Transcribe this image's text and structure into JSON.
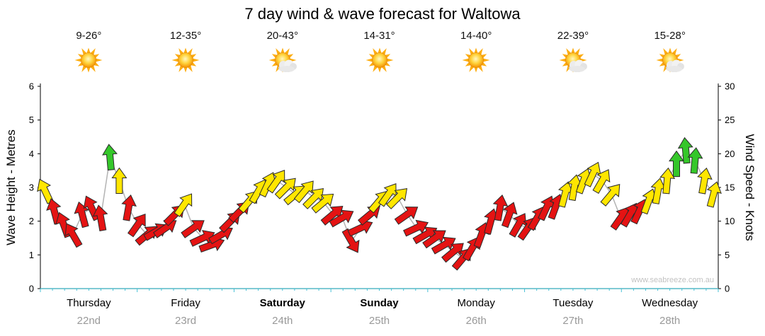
{
  "title": "7 day wind & wave forecast for Waltowa",
  "watermark": "www.seabreeze.com.au",
  "axes": {
    "left_label": "Wave Height - Metres",
    "right_label": "Wind Speed - Knots",
    "left_ticks": [
      0,
      1,
      2,
      3,
      4,
      5,
      6
    ],
    "right_ticks": [
      0,
      5,
      10,
      15,
      20,
      25,
      30
    ]
  },
  "colors": {
    "arrow_low": "#e41313",
    "arrow_mid": "#ffe600",
    "arrow_high": "#35c72a",
    "wave_line": "#b3b3b3",
    "axis": "#000000",
    "bottom_axis": "#56b8c6",
    "bottom_tick": "#45c0d6",
    "day_text": "#000000",
    "date_text": "#999999",
    "watermark_text": "#c2c2c2"
  },
  "days": [
    {
      "name": "Thursday",
      "date": "22nd",
      "temp": "9-26°",
      "icon": "sunny",
      "bold": false
    },
    {
      "name": "Friday",
      "date": "23rd",
      "temp": "12-35°",
      "icon": "sunny",
      "bold": false
    },
    {
      "name": "Saturday",
      "date": "24th",
      "temp": "20-43°",
      "icon": "partly-cloudy",
      "bold": true
    },
    {
      "name": "Sunday",
      "date": "25th",
      "temp": "14-31°",
      "icon": "sunny",
      "bold": true
    },
    {
      "name": "Monday",
      "date": "26th",
      "temp": "14-40°",
      "icon": "sunny",
      "bold": false
    },
    {
      "name": "Tuesday",
      "date": "27th",
      "temp": "22-39°",
      "icon": "partly-cloudy",
      "bold": false
    },
    {
      "name": "Wednesday",
      "date": "28th",
      "temp": "15-28°",
      "icon": "partly-cloudy",
      "bold": false
    }
  ],
  "chart_data": {
    "type": "wind-arrows",
    "title": "7 day wind & wave forecast for Waltowa",
    "ylabel_left": "Wave Height - Metres",
    "ylabel_right": "Wind Speed - Knots",
    "ylim_left": [
      0,
      6
    ],
    "ylim_right": [
      0,
      30
    ],
    "x_categories": [
      "Thursday 22nd",
      "Friday 23rd",
      "Saturday 24th",
      "Sunday 25th",
      "Monday 26th",
      "Tuesday 27th",
      "Wednesday 28th"
    ],
    "speed_color_bands": [
      {
        "max_knots": 12.5,
        "color_key": "arrow_low"
      },
      {
        "max_knots": 17.5,
        "color_key": "arrow_mid"
      },
      {
        "max_knots": 999,
        "color_key": "arrow_high"
      }
    ],
    "note": "each point is [wind speed in knots, arrow direction degrees clockwise from up]; points evenly spaced through the day",
    "series_by_day": [
      {
        "day": "Thursday",
        "wind": [
          [
            14.5,
            -25
          ],
          [
            11.5,
            -15
          ],
          [
            9.5,
            -20
          ],
          [
            8,
            -30
          ],
          [
            11,
            -15
          ],
          [
            12,
            -25
          ],
          [
            10.5,
            -10
          ],
          [
            19.5,
            -5
          ],
          [
            16,
            0
          ],
          [
            12,
            10
          ]
        ]
      },
      {
        "day": "Friday",
        "wind": [
          [
            9.5,
            35
          ],
          [
            8,
            50
          ],
          [
            8.5,
            60
          ],
          [
            9,
            55
          ],
          [
            11,
            45
          ],
          [
            12.5,
            35
          ],
          [
            9,
            55
          ],
          [
            7.5,
            65
          ],
          [
            6.5,
            70
          ],
          [
            8,
            60
          ],
          [
            10,
            45
          ]
        ]
      },
      {
        "day": "Saturday",
        "wind": [
          [
            11.5,
            45
          ],
          [
            13,
            40
          ],
          [
            14.5,
            30
          ],
          [
            15.5,
            25
          ],
          [
            16,
            35
          ],
          [
            15,
            45
          ],
          [
            14,
            50
          ],
          [
            14.5,
            40
          ],
          [
            13.5,
            45
          ],
          [
            12.8,
            50
          ]
        ]
      },
      {
        "day": "Sunday",
        "wind": [
          [
            11,
            50
          ],
          [
            10.5,
            60
          ],
          [
            7,
            150
          ],
          [
            9,
            65
          ],
          [
            11,
            50
          ],
          [
            13,
            40
          ],
          [
            14,
            35
          ],
          [
            13.5,
            45
          ],
          [
            11,
            55
          ],
          [
            9,
            65
          ],
          [
            8,
            60
          ]
        ]
      },
      {
        "day": "Monday",
        "wind": [
          [
            7.5,
            55
          ],
          [
            6.5,
            60
          ],
          [
            5.5,
            50
          ],
          [
            4.5,
            40
          ],
          [
            6,
            30
          ],
          [
            8,
            20
          ],
          [
            10,
            15
          ],
          [
            12,
            10
          ],
          [
            11,
            20
          ],
          [
            9.5,
            30
          ]
        ]
      },
      {
        "day": "Tuesday",
        "wind": [
          [
            9,
            35
          ],
          [
            10.5,
            30
          ],
          [
            12,
            25
          ],
          [
            12.2,
            20
          ],
          [
            14,
            15
          ],
          [
            15,
            10
          ],
          [
            16,
            20
          ],
          [
            17,
            25
          ],
          [
            16,
            30
          ],
          [
            14,
            40
          ]
        ]
      },
      {
        "day": "Wednesday",
        "wind": [
          [
            10.5,
            35
          ],
          [
            11,
            30
          ],
          [
            11.5,
            25
          ],
          [
            13,
            20
          ],
          [
            14.5,
            10
          ],
          [
            16,
            5
          ],
          [
            18.5,
            0
          ],
          [
            20.5,
            -5
          ],
          [
            19,
            5
          ],
          [
            16,
            10
          ],
          [
            14,
            15
          ]
        ]
      }
    ]
  }
}
